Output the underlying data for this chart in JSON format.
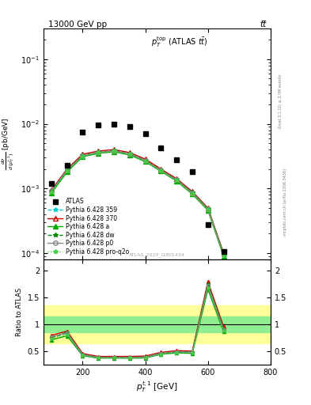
{
  "title_top": "13000 GeV pp",
  "title_right": "tt̅",
  "plot_title": "p_T^{top} (ATLAS ttbar)",
  "xlabel": "p_T^{t,1} [GeV]",
  "ylabel_main": "dσ/d(p_T^{t,1}) [pb/GeV]",
  "ylabel_ratio": "Ratio to ATLAS",
  "watermark": "ATLAS_2020_I1801434",
  "rivet_text": "Rivet 3.1.10; ≥ 3.5M events",
  "mcplots_text": "mcplots.cern.ch [arXiv:1306.3436]",
  "atlas_data_x": [
    100,
    150,
    200,
    250,
    300,
    350,
    400,
    450,
    500,
    550,
    600,
    650
  ],
  "atlas_data_y": [
    0.0012,
    0.0023,
    0.0075,
    0.0095,
    0.01,
    0.009,
    0.007,
    0.0042,
    0.0028,
    0.0018,
    0.00028,
    0.000105
  ],
  "xbins": [
    100,
    150,
    200,
    250,
    300,
    350,
    400,
    450,
    500,
    550,
    600,
    650
  ],
  "py359_y": [
    0.0009,
    0.0019,
    0.0032,
    0.0036,
    0.0038,
    0.0034,
    0.0027,
    0.0019,
    0.00135,
    0.00085,
    0.00048,
    9.5e-05
  ],
  "py370_y": [
    0.00095,
    0.002,
    0.0034,
    0.0038,
    0.004,
    0.0036,
    0.00285,
    0.002,
    0.00142,
    0.0009,
    0.0005,
    0.0001
  ],
  "pya_y": [
    0.00085,
    0.0018,
    0.0031,
    0.0035,
    0.0037,
    0.0033,
    0.0026,
    0.00185,
    0.0013,
    0.00082,
    0.00046,
    9e-05
  ],
  "pydw_y": [
    0.0009,
    0.00195,
    0.00325,
    0.00365,
    0.00385,
    0.00345,
    0.00272,
    0.00193,
    0.00137,
    0.00087,
    0.00049,
    9.6e-05
  ],
  "pyp0_y": [
    0.00092,
    0.00192,
    0.00322,
    0.00362,
    0.00382,
    0.00342,
    0.0027,
    0.00191,
    0.00136,
    0.00086,
    0.00048,
    9.4e-05
  ],
  "pyprq2o_y": [
    0.00088,
    0.00185,
    0.00315,
    0.00355,
    0.00375,
    0.00335,
    0.00263,
    0.00187,
    0.00132,
    0.00083,
    0.00047,
    9.2e-05
  ],
  "ratio_band_green_lo": [
    0.85,
    0.85,
    0.85,
    0.85,
    0.85,
    0.85,
    0.85,
    0.85,
    0.85,
    0.85,
    0.85,
    0.85
  ],
  "ratio_band_green_hi": [
    1.15,
    1.15,
    1.15,
    1.15,
    1.15,
    1.15,
    1.15,
    1.15,
    1.15,
    1.15,
    1.15,
    1.15
  ],
  "ratio_band_yellow_lo": [
    0.65,
    0.65,
    0.65,
    0.65,
    0.65,
    0.65,
    0.65,
    0.65,
    0.65,
    0.65,
    0.65,
    0.65
  ],
  "ratio_band_yellow_hi": [
    1.35,
    1.35,
    1.35,
    1.35,
    1.35,
    1.35,
    1.35,
    1.35,
    1.35,
    1.35,
    1.35,
    1.35
  ],
  "color_py359": "#00cccc",
  "color_py370": "#cc0000",
  "color_pya": "#00aa00",
  "color_pydw": "#008800",
  "color_pyp0": "#888888",
  "color_pyprq2o": "#44cc44",
  "color_band_green": "#90ee90",
  "color_band_yellow": "#ffff99",
  "xlim": [
    75,
    800
  ],
  "ylim_main": [
    8e-05,
    0.3
  ],
  "ylim_ratio": [
    0.25,
    2.2
  ],
  "ratio_yticks": [
    0.5,
    1.0,
    1.5,
    2.0
  ]
}
